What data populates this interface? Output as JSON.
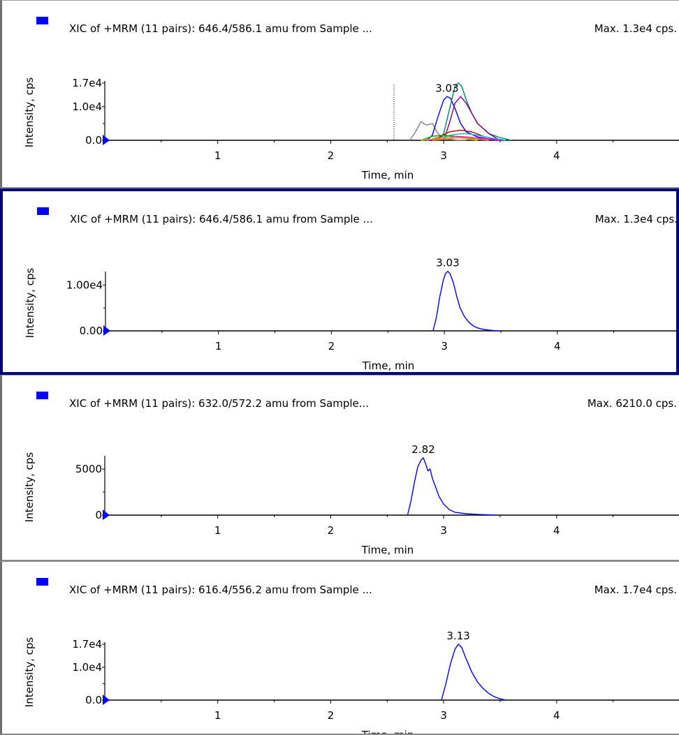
{
  "colors": {
    "trace": "#0000ff",
    "legend_box": "#0000ff",
    "axis": "#000000",
    "selected_border": "#00007a",
    "marker": "#0000ff",
    "overlay_series": [
      "#808080",
      "#0000ff",
      "#008080",
      "#800080",
      "#c00000",
      "#00c0c0",
      "#00a000",
      "#ff00ff",
      "#c0c000",
      "#ff8000"
    ]
  },
  "icons": {
    "legend": "blue-square-icon",
    "zero_marker": "triangle-marker-icon"
  },
  "chart_data": [
    {
      "type": "line",
      "title": "XIC of +MRM (11 pairs): 646.4/586.1 amu from Sample ...",
      "max_label": "Max. 1.3e4 cps.",
      "xlabel": "Time, min",
      "ylabel": "Intensity, cps",
      "xlim": [
        0,
        5
      ],
      "xticks": [
        "1",
        "2",
        "3",
        "4"
      ],
      "xtick_values": [
        1,
        2,
        3,
        4
      ],
      "ylim": [
        0,
        17000
      ],
      "yticks": [
        "0.0",
        "1.0e4",
        "1.7e4"
      ],
      "ytick_values": [
        0,
        10000,
        17000
      ],
      "peak_label": "3.03",
      "peak_x": 3.03,
      "peak_y": 13000,
      "overlay": true,
      "vline_x": 2.56,
      "series": [
        {
          "x": [
            2.7,
            2.75,
            2.8,
            2.85,
            2.9,
            2.95,
            3.0,
            3.05,
            3.1,
            3.15,
            3.2
          ],
          "y": [
            0,
            2500,
            5500,
            4500,
            5000,
            2000,
            800,
            300,
            100,
            0,
            0
          ]
        },
        {
          "x": [
            2.85,
            2.9,
            2.95,
            3.0,
            3.03,
            3.06,
            3.1,
            3.15,
            3.2,
            3.3,
            3.4,
            3.5
          ],
          "y": [
            0,
            1500,
            7000,
            12000,
            13000,
            12500,
            9500,
            5000,
            2500,
            1000,
            400,
            0
          ]
        },
        {
          "x": [
            2.95,
            3.0,
            3.05,
            3.1,
            3.13,
            3.16,
            3.2,
            3.25,
            3.3,
            3.4,
            3.5,
            3.6
          ],
          "y": [
            0,
            2000,
            9000,
            16000,
            17000,
            16000,
            12000,
            8000,
            5000,
            2000,
            800,
            0
          ]
        },
        {
          "x": [
            3.0,
            3.05,
            3.1,
            3.15,
            3.2,
            3.25,
            3.3,
            3.4,
            3.5
          ],
          "y": [
            0,
            5000,
            11000,
            13000,
            11000,
            8000,
            5000,
            2000,
            0
          ]
        },
        {
          "x": [
            2.85,
            2.95,
            3.05,
            3.15,
            3.25,
            3.35,
            3.5
          ],
          "y": [
            0,
            800,
            2500,
            3000,
            2500,
            1200,
            0
          ]
        },
        {
          "x": [
            2.9,
            3.0,
            3.1,
            3.2,
            3.3,
            3.4,
            3.55
          ],
          "y": [
            0,
            1000,
            1800,
            2000,
            1500,
            800,
            0
          ]
        },
        {
          "x": [
            2.8,
            2.9,
            3.0,
            3.1,
            3.2,
            3.3
          ],
          "y": [
            0,
            1200,
            1500,
            1200,
            700,
            0
          ]
        },
        {
          "x": [
            2.85,
            3.0,
            3.1,
            3.2,
            3.35,
            3.5
          ],
          "y": [
            0,
            700,
            1200,
            1000,
            500,
            0
          ]
        },
        {
          "x": [
            2.8,
            2.95,
            3.05,
            3.15,
            3.3
          ],
          "y": [
            0,
            600,
            900,
            700,
            0
          ]
        },
        {
          "x": [
            2.9,
            3.05,
            3.15,
            3.25,
            3.4
          ],
          "y": [
            0,
            500,
            800,
            600,
            0
          ]
        }
      ]
    },
    {
      "type": "line",
      "title": "XIC of +MRM (11 pairs): 646.4/586.1 amu from Sample ...",
      "max_label": "Max. 1.3e4 cps.",
      "xlabel": "Time, min",
      "ylabel": "Intensity, cps",
      "xlim": [
        0,
        5
      ],
      "xticks": [
        "1",
        "2",
        "3",
        "4"
      ],
      "xtick_values": [
        1,
        2,
        3,
        4
      ],
      "ylim": [
        0,
        12500
      ],
      "yticks": [
        "0.00",
        "1.00e4"
      ],
      "ytick_values": [
        0,
        10000
      ],
      "peak_label": "3.03",
      "peak_x": 3.03,
      "peak_y": 13000,
      "overlay": false,
      "selected": true,
      "series": [
        {
          "x": [
            2.9,
            2.93,
            2.96,
            2.99,
            3.01,
            3.03,
            3.05,
            3.08,
            3.11,
            3.14,
            3.18,
            3.22,
            3.26,
            3.3,
            3.35,
            3.4,
            3.45,
            3.48
          ],
          "y": [
            0,
            3000,
            7500,
            11000,
            12500,
            13000,
            12500,
            10500,
            7500,
            5000,
            3000,
            1800,
            1000,
            600,
            300,
            150,
            50,
            0
          ]
        }
      ]
    },
    {
      "type": "line",
      "title": "XIC of +MRM (11 pairs): 632.0/572.2 amu from Sample...",
      "max_label": "Max. 6210.0 cps.",
      "xlabel": "Time, min",
      "ylabel": "Intensity, cps",
      "xlim": [
        0,
        5
      ],
      "xticks": [
        "1",
        "2",
        "3",
        "4"
      ],
      "xtick_values": [
        1,
        2,
        3,
        4
      ],
      "ylim": [
        0,
        6210
      ],
      "yticks": [
        "0",
        "5000"
      ],
      "ytick_values": [
        0,
        5000
      ],
      "peak_label": "2.82",
      "peak_x": 2.82,
      "peak_y": 6210,
      "overlay": false,
      "series": [
        {
          "x": [
            2.68,
            2.71,
            2.74,
            2.77,
            2.8,
            2.82,
            2.84,
            2.86,
            2.88,
            2.9,
            2.93,
            2.96,
            3.0,
            3.05,
            3.1,
            3.2,
            3.3,
            3.4,
            3.45
          ],
          "y": [
            0,
            1500,
            3500,
            5200,
            6000,
            6210,
            5600,
            4800,
            5000,
            4000,
            3000,
            2000,
            1200,
            600,
            300,
            150,
            80,
            30,
            0
          ]
        }
      ]
    },
    {
      "type": "line",
      "title": "XIC of +MRM (11 pairs): 616.4/556.2 amu from Sample ...",
      "max_label": "Max. 1.7e4 cps.",
      "xlabel": "Time, min",
      "ylabel": "Intensity, cps",
      "xlim": [
        0,
        5
      ],
      "xticks": [
        "1",
        "2",
        "3",
        "4"
      ],
      "xtick_values": [
        1,
        2,
        3,
        4
      ],
      "ylim": [
        0,
        17000
      ],
      "yticks": [
        "0.0",
        "1.0e4",
        "1.7e4"
      ],
      "ytick_values": [
        0,
        10000,
        17000
      ],
      "peak_label": "3.13",
      "peak_x": 3.13,
      "peak_y": 17000,
      "overlay": false,
      "series": [
        {
          "x": [
            2.98,
            3.02,
            3.06,
            3.1,
            3.13,
            3.16,
            3.2,
            3.25,
            3.3,
            3.35,
            3.4,
            3.45,
            3.5,
            3.55
          ],
          "y": [
            0,
            5000,
            11000,
            15500,
            17000,
            16000,
            12500,
            8500,
            5500,
            3500,
            2000,
            1000,
            400,
            0
          ]
        }
      ]
    }
  ]
}
